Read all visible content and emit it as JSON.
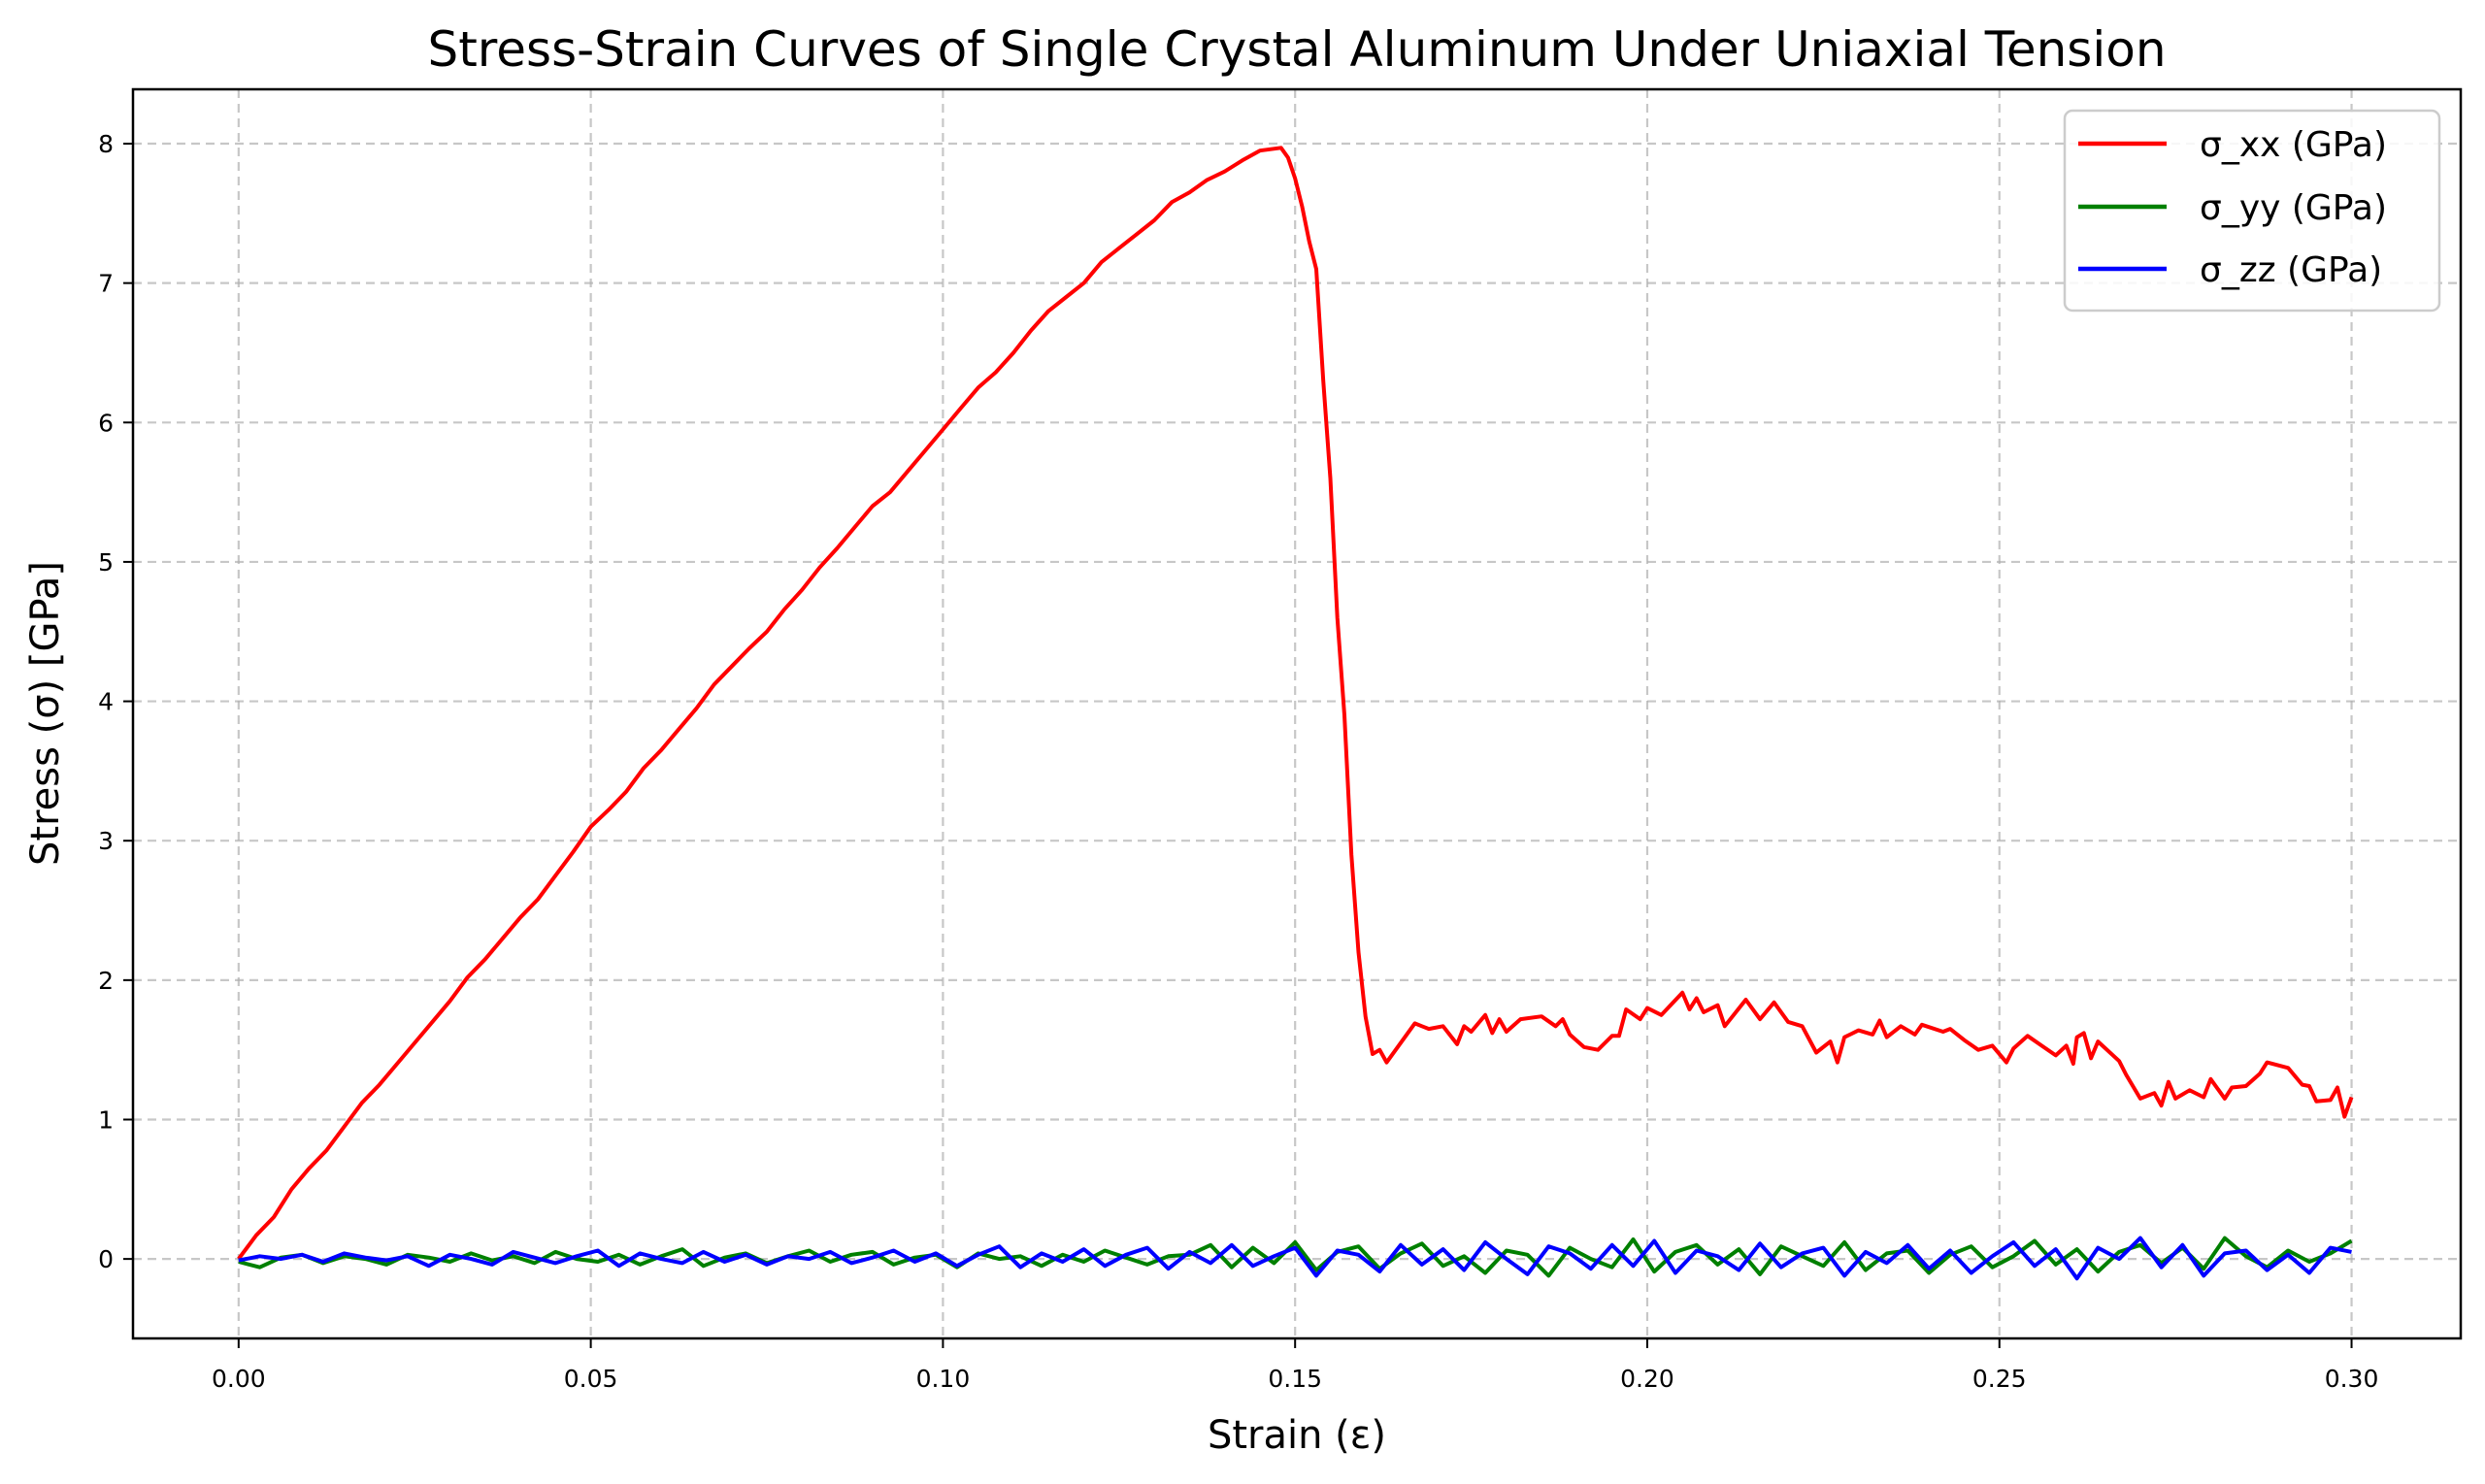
{
  "chart_data": {
    "type": "line",
    "title": "Stress-Strain Curves of Single Crystal Aluminum Under Uniaxial Tension",
    "xlabel": "Strain (ε)",
    "ylabel": "Stress (σ) [GPa]",
    "xlim": [
      -0.015,
      0.3155
    ],
    "ylim": [
      -0.57,
      8.39
    ],
    "xticks": [
      "0.00",
      "0.05",
      "0.10",
      "0.15",
      "0.20",
      "0.25",
      "0.30"
    ],
    "yticks": [
      "0",
      "1",
      "2",
      "3",
      "4",
      "5",
      "6",
      "7",
      "8"
    ],
    "grid": true,
    "legend_position": "top-right",
    "series": [
      {
        "name": "σ_xx (GPa)",
        "color": "#ff0000",
        "x": [
          0,
          0.0025,
          0.005,
          0.0075,
          0.01,
          0.0125,
          0.015,
          0.0175,
          0.02,
          0.0225,
          0.025,
          0.0275,
          0.03,
          0.0325,
          0.035,
          0.0375,
          0.04,
          0.0425,
          0.045,
          0.0475,
          0.05,
          0.0525,
          0.055,
          0.0575,
          0.06,
          0.0625,
          0.065,
          0.0675,
          0.07,
          0.0725,
          0.075,
          0.0775,
          0.08,
          0.0825,
          0.085,
          0.0875,
          0.09,
          0.0925,
          0.095,
          0.0975,
          0.1,
          0.1025,
          0.105,
          0.1075,
          0.11,
          0.1125,
          0.115,
          0.1175,
          0.12,
          0.1225,
          0.125,
          0.1275,
          0.13,
          0.1325,
          0.135,
          0.1375,
          0.14,
          0.1425,
          0.145,
          0.148,
          0.149,
          0.15,
          0.151,
          0.152,
          0.153,
          0.154,
          0.155,
          0.156,
          0.157,
          0.158,
          0.159,
          0.16,
          0.161,
          0.162,
          0.163,
          0.167,
          0.168,
          0.169,
          0.171,
          0.173,
          0.174,
          0.175,
          0.177,
          0.178,
          0.179,
          0.18,
          0.182,
          0.185,
          0.187,
          0.188,
          0.189,
          0.191,
          0.193,
          0.195,
          0.196,
          0.197,
          0.199,
          0.2,
          0.202,
          0.205,
          0.206,
          0.207,
          0.208,
          0.21,
          0.211,
          0.214,
          0.216,
          0.218,
          0.22,
          0.222,
          0.224,
          0.226,
          0.227,
          0.228,
          0.23,
          0.232,
          0.233,
          0.234,
          0.236,
          0.238,
          0.239,
          0.242,
          0.243,
          0.245,
          0.247,
          0.249,
          0.251,
          0.252,
          0.254,
          0.256,
          0.258,
          0.2595,
          0.2605,
          0.261,
          0.262,
          0.263,
          0.264,
          0.267,
          0.268,
          0.27,
          0.272,
          0.273,
          0.274,
          0.275,
          0.277,
          0.279,
          0.28,
          0.282,
          0.283,
          0.285,
          0.287,
          0.288,
          0.291,
          0.293,
          0.294,
          0.295,
          0.297,
          0.298,
          0.299,
          0.3
        ],
        "y": [
          0,
          0.17,
          0.3,
          0.5,
          0.65,
          0.78,
          0.95,
          1.12,
          1.25,
          1.4,
          1.55,
          1.7,
          1.85,
          2.02,
          2.15,
          2.3,
          2.45,
          2.58,
          2.75,
          2.92,
          3.1,
          3.22,
          3.35,
          3.52,
          3.65,
          3.8,
          3.95,
          4.12,
          4.25,
          4.38,
          4.5,
          4.66,
          4.8,
          4.96,
          5.1,
          5.25,
          5.4,
          5.5,
          5.65,
          5.8,
          5.95,
          6.1,
          6.25,
          6.36,
          6.5,
          6.66,
          6.8,
          6.9,
          7.0,
          7.15,
          7.25,
          7.35,
          7.45,
          7.58,
          7.65,
          7.74,
          7.8,
          7.88,
          7.95,
          7.97,
          7.9,
          7.75,
          7.55,
          7.3,
          7.1,
          6.3,
          5.6,
          4.6,
          3.9,
          2.9,
          2.2,
          1.74,
          1.47,
          1.5,
          1.41,
          1.69,
          1.67,
          1.65,
          1.67,
          1.54,
          1.67,
          1.63,
          1.75,
          1.62,
          1.72,
          1.63,
          1.72,
          1.74,
          1.67,
          1.72,
          1.61,
          1.52,
          1.5,
          1.6,
          1.6,
          1.79,
          1.72,
          1.8,
          1.75,
          1.91,
          1.79,
          1.87,
          1.77,
          1.82,
          1.67,
          1.86,
          1.72,
          1.84,
          1.7,
          1.67,
          1.48,
          1.56,
          1.41,
          1.59,
          1.64,
          1.61,
          1.71,
          1.59,
          1.67,
          1.61,
          1.68,
          1.63,
          1.65,
          1.57,
          1.5,
          1.53,
          1.41,
          1.51,
          1.6,
          1.53,
          1.46,
          1.53,
          1.4,
          1.59,
          1.62,
          1.44,
          1.56,
          1.42,
          1.32,
          1.15,
          1.19,
          1.1,
          1.27,
          1.15,
          1.21,
          1.16,
          1.29,
          1.15,
          1.23,
          1.24,
          1.33,
          1.41,
          1.37,
          1.25,
          1.24,
          1.13,
          1.14,
          1.23,
          1.02,
          1.16
        ]
      },
      {
        "name": "σ_yy (GPa)",
        "color": "#008000",
        "x0": 0,
        "dx": 0.003,
        "y": [
          -0.02,
          -0.06,
          0.01,
          0.03,
          -0.03,
          0.02,
          0.0,
          -0.04,
          0.03,
          0.01,
          -0.02,
          0.04,
          -0.01,
          0.02,
          -0.03,
          0.05,
          0.0,
          -0.02,
          0.03,
          -0.04,
          0.02,
          0.07,
          -0.05,
          0.01,
          0.04,
          -0.03,
          0.02,
          0.06,
          -0.02,
          0.03,
          0.05,
          -0.04,
          0.01,
          0.03,
          -0.06,
          0.04,
          0.0,
          0.02,
          -0.05,
          0.03,
          -0.02,
          0.06,
          0.01,
          -0.04,
          0.02,
          0.03,
          0.1,
          -0.06,
          0.08,
          -0.03,
          0.12,
          -0.08,
          0.05,
          0.09,
          -0.07,
          0.04,
          0.11,
          -0.05,
          0.02,
          -0.1,
          0.06,
          0.03,
          -0.12,
          0.08,
          0.0,
          -0.06,
          0.14,
          -0.09,
          0.05,
          0.1,
          -0.04,
          0.07,
          -0.11,
          0.09,
          0.02,
          -0.05,
          0.12,
          -0.08,
          0.04,
          0.06,
          -0.1,
          0.03,
          0.09,
          -0.06,
          0.02,
          0.13,
          -0.04,
          0.07,
          -0.09,
          0.05,
          0.1,
          -0.03,
          0.08,
          -0.07,
          0.15,
          0.02,
          -0.06,
          0.06,
          -0.02,
          0.04,
          0.13
        ]
      },
      {
        "name": "σ_zz (GPa)",
        "color": "#0000ff",
        "x0": 0,
        "dx": 0.003,
        "y": [
          -0.01,
          0.02,
          0.0,
          0.03,
          -0.02,
          0.04,
          0.01,
          -0.01,
          0.02,
          -0.05,
          0.03,
          0.0,
          -0.04,
          0.05,
          0.01,
          -0.03,
          0.02,
          0.06,
          -0.05,
          0.04,
          0.0,
          -0.03,
          0.05,
          -0.02,
          0.03,
          -0.04,
          0.02,
          0.0,
          0.05,
          -0.03,
          0.01,
          0.06,
          -0.02,
          0.04,
          -0.05,
          0.03,
          0.09,
          -0.06,
          0.04,
          -0.02,
          0.07,
          -0.05,
          0.03,
          0.08,
          -0.07,
          0.05,
          -0.03,
          0.1,
          -0.05,
          0.02,
          0.08,
          -0.12,
          0.06,
          0.03,
          -0.09,
          0.1,
          -0.04,
          0.07,
          -0.08,
          0.12,
          0.0,
          -0.11,
          0.09,
          0.04,
          -0.07,
          0.1,
          -0.05,
          0.13,
          -0.1,
          0.06,
          0.02,
          -0.08,
          0.11,
          -0.06,
          0.04,
          0.08,
          -0.12,
          0.05,
          -0.03,
          0.1,
          -0.07,
          0.06,
          -0.1,
          0.02,
          0.12,
          -0.05,
          0.07,
          -0.14,
          0.08,
          0.0,
          0.15,
          -0.06,
          0.1,
          -0.12,
          0.04,
          0.06,
          -0.08,
          0.03,
          -0.1,
          0.08,
          0.05
        ]
      }
    ]
  }
}
